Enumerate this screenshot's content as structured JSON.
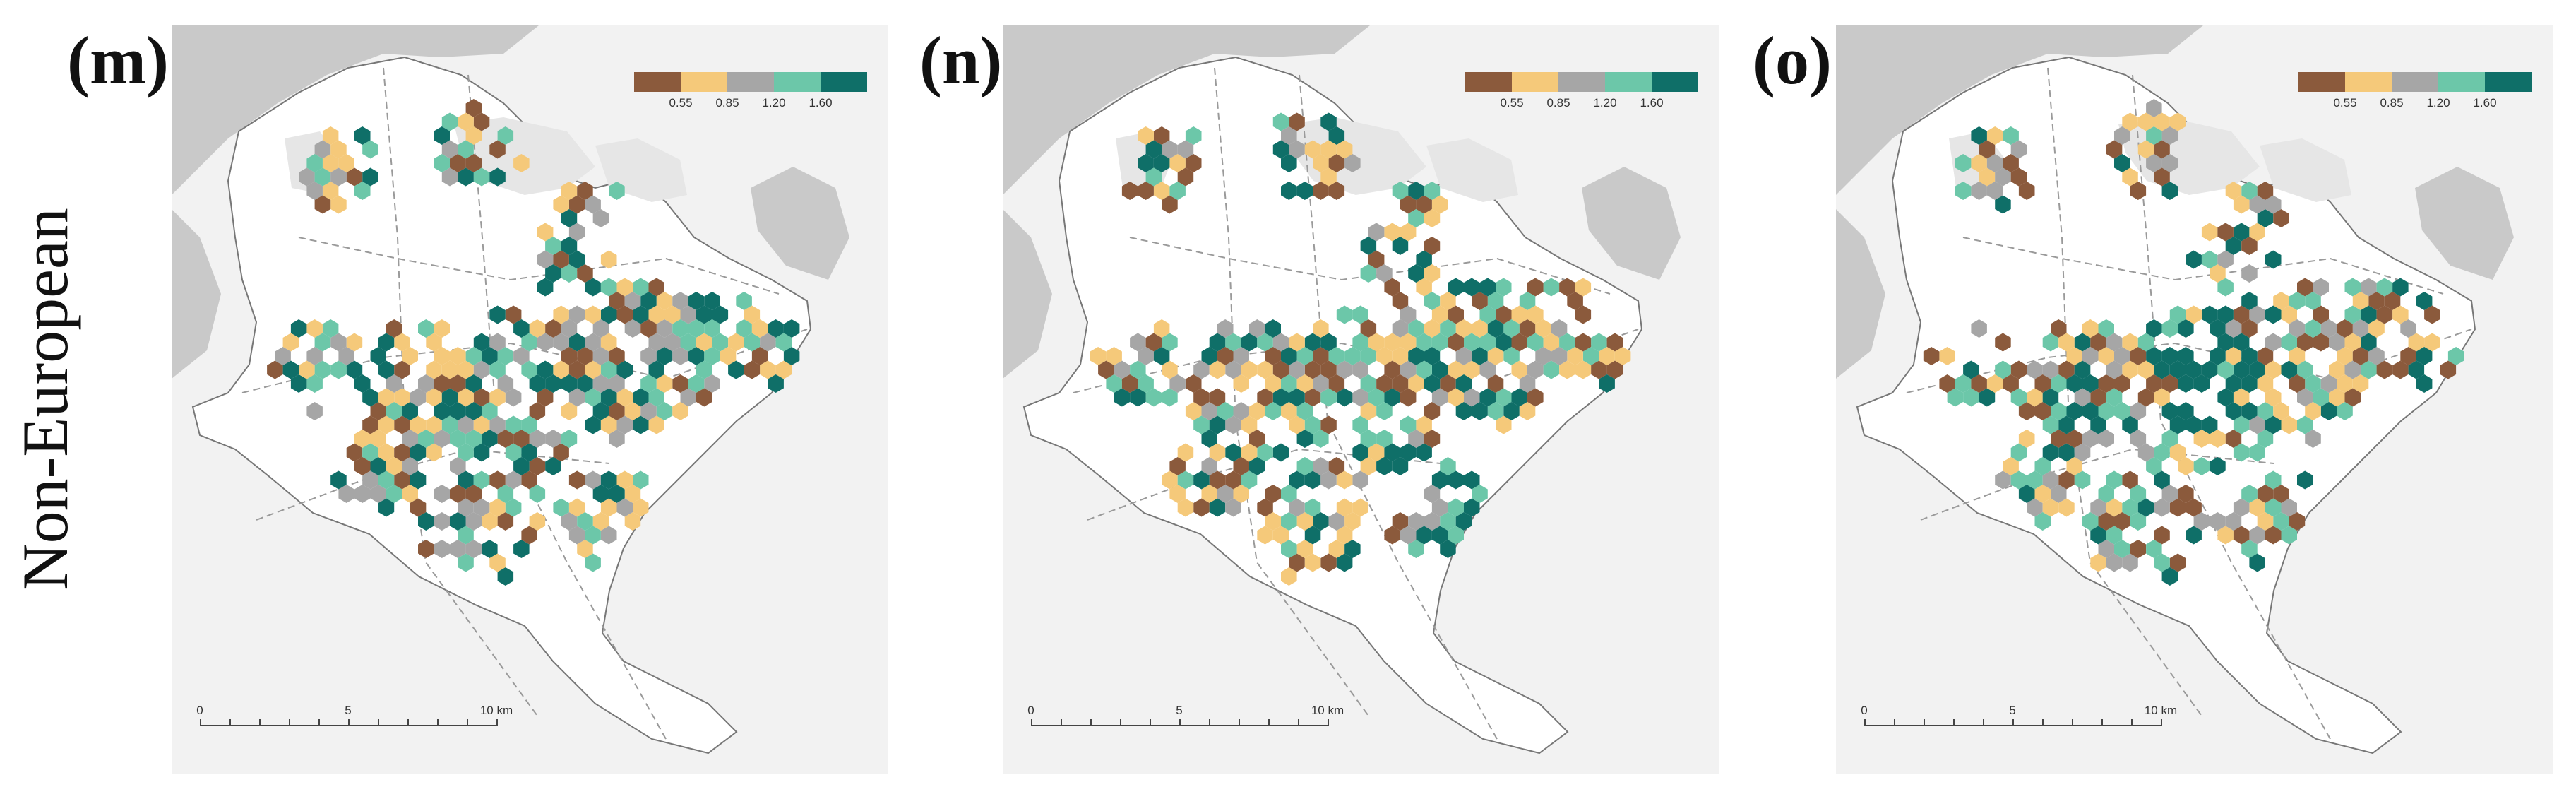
{
  "row_label": "Non-European",
  "legend": {
    "colors": [
      "#8b5a3c",
      "#f5c97a",
      "#a6a6a6",
      "#6cc7a9",
      "#0f6f68"
    ],
    "ticks": [
      "0.55",
      "0.85",
      "1.20",
      "1.60"
    ]
  },
  "scalebar": {
    "labels": [
      "0",
      "5",
      "10 km"
    ]
  },
  "panels": [
    {
      "label": "(m)",
      "seed": 11
    },
    {
      "label": "(n)",
      "seed": 37
    },
    {
      "label": "(o)",
      "seed": 73
    }
  ],
  "colors": {
    "background": "#f2f2f2",
    "water": "#c9c9c9",
    "city": "#ffffff",
    "green": "#e6e6e6",
    "road": "#9a9a9a"
  }
}
